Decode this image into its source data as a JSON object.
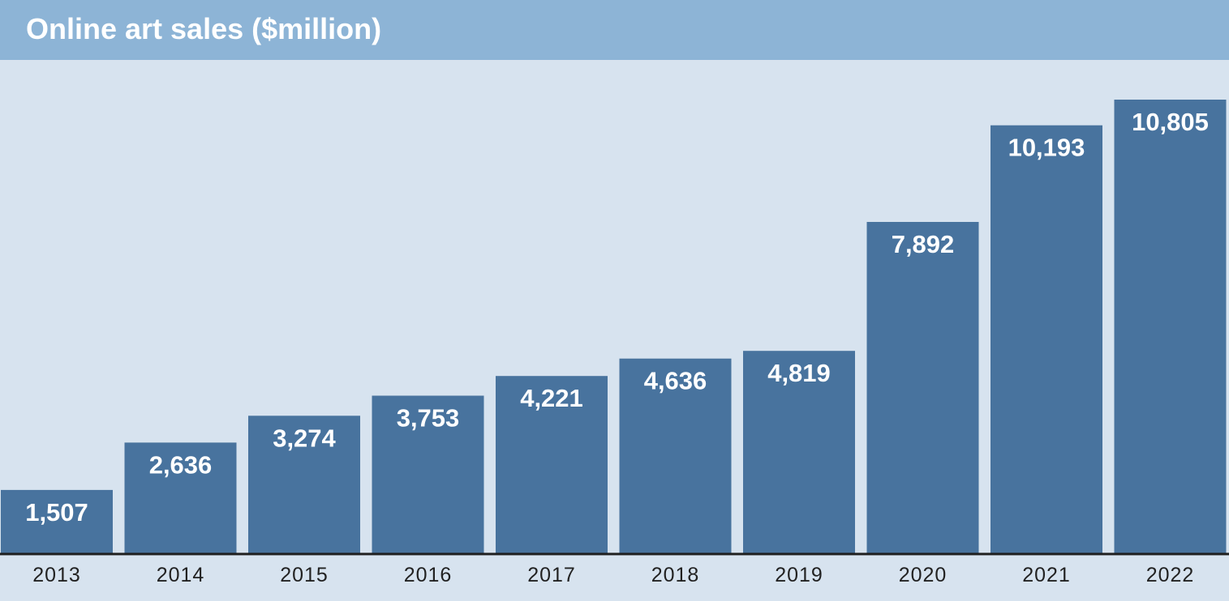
{
  "chart_data": {
    "type": "bar",
    "title": "Online art sales ($million)",
    "xlabel": "",
    "ylabel": "",
    "categories": [
      "2013",
      "2014",
      "2015",
      "2016",
      "2017",
      "2018",
      "2019",
      "2020",
      "2021",
      "2022"
    ],
    "values": [
      1507,
      2636,
      3274,
      3753,
      4221,
      4636,
      4819,
      7892,
      10193,
      10805
    ],
    "value_labels": [
      "1,507",
      "2,636",
      "3,274",
      "3,753",
      "4,221",
      "4,636",
      "4,819",
      "7,892",
      "10,193",
      "10,805"
    ],
    "ylim": [
      0,
      10805
    ],
    "grid": false,
    "legend": "none",
    "colors": {
      "title_bar": "#8db4d6",
      "plot_background": "#d7e3ef",
      "bar": "#48739e",
      "value_label": "#ffffff",
      "axis_line": "#1f1f1f",
      "tick_label": "#222222"
    }
  }
}
